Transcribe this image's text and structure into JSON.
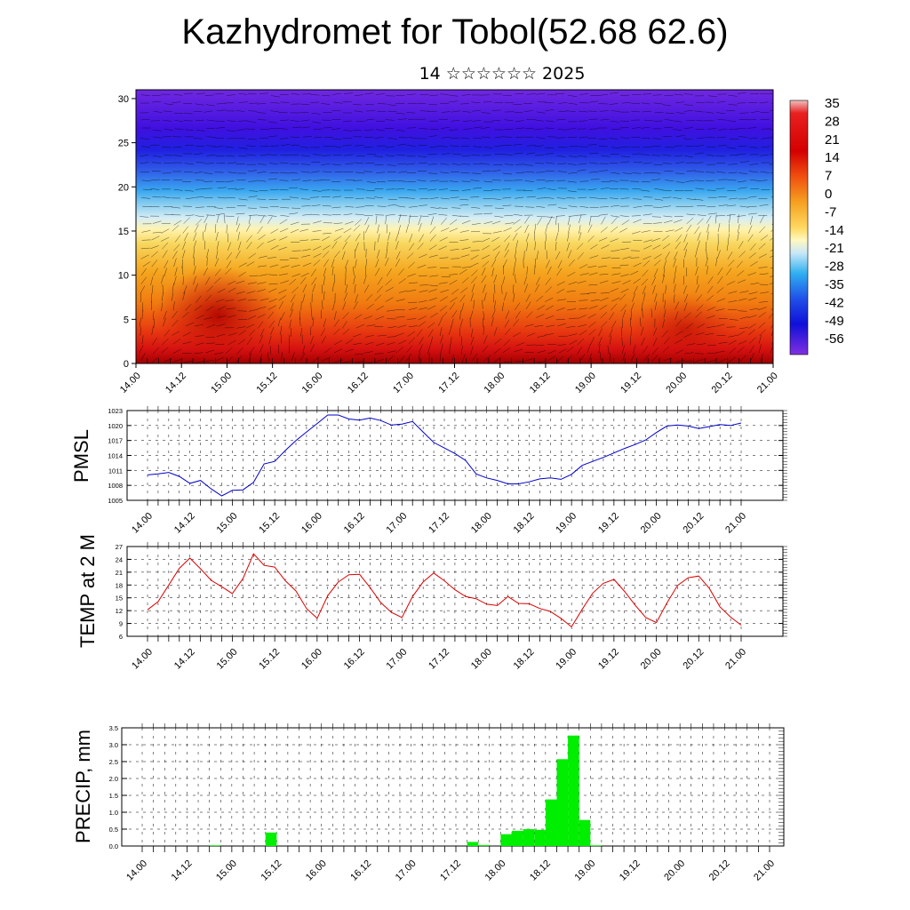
{
  "header": {
    "title": "Kazhydromet for Tobol(52.68 62.6)",
    "subtitle": "14 ☆☆☆☆☆☆ 2025"
  },
  "time_labels": [
    "14.00",
    "14.12",
    "15.00",
    "15.12",
    "16.00",
    "16.12",
    "17.00",
    "17.12",
    "18.00",
    "18.12",
    "19.00",
    "19.12",
    "20.00",
    "20.12",
    "21.00"
  ],
  "colors": {
    "pmsl_line": "#0000cc",
    "temp_line": "#dd0000",
    "precip_bar": "#00ee00",
    "contour_lines": "#000000"
  },
  "chart_data": [
    {
      "type": "heatmap",
      "title": "",
      "ylim": [
        0,
        31
      ],
      "y_ticks": [
        0,
        5,
        10,
        15,
        20,
        25,
        30
      ],
      "x_tick_labels": [
        "14.00",
        "14.12",
        "15.00",
        "15.12",
        "16.00",
        "16.12",
        "17.00",
        "17.12",
        "18.00",
        "18.12",
        "19.00",
        "19.12",
        "20.00",
        "20.12",
        "21.00"
      ],
      "colorbar": {
        "labels": [
          "35",
          "28",
          "21",
          "14",
          "7",
          "0",
          "-7",
          "-14",
          "-21",
          "-28",
          "-35",
          "-42",
          "-49",
          "-56"
        ],
        "min": -63,
        "max": 40
      },
      "overlay": "wind vectors"
    },
    {
      "type": "line",
      "ylabel": "PMSL",
      "ylim": [
        1005,
        1023
      ],
      "y_ticks": [
        1005,
        1008,
        1011,
        1014,
        1017,
        1020,
        1023
      ],
      "x_tick_labels": [
        "14.00",
        "14.12",
        "15.00",
        "15.12",
        "16.00",
        "16.12",
        "17.00",
        "17.12",
        "18.00",
        "18.12",
        "19.00",
        "19.12",
        "20.00",
        "20.12",
        "21.00"
      ],
      "x": [
        0,
        3,
        6,
        9,
        12,
        15,
        18,
        21,
        24,
        27,
        30,
        33,
        36,
        39,
        42,
        45,
        48,
        51,
        54,
        57,
        60,
        63,
        66,
        69,
        72,
        75,
        78,
        81,
        84,
        87,
        90,
        93,
        96,
        99,
        102,
        105,
        108,
        111,
        114,
        117,
        120,
        123,
        126,
        129,
        132,
        135,
        138,
        141,
        144,
        147,
        150,
        153,
        156,
        159,
        162,
        165,
        168
      ],
      "values": [
        1010.1,
        1010.3,
        1010.6,
        1009.8,
        1008.4,
        1009.0,
        1007.3,
        1005.9,
        1007.0,
        1007.1,
        1008.6,
        1012.3,
        1012.8,
        1015.0,
        1017.0,
        1018.7,
        1020.4,
        1022.1,
        1022.1,
        1021.3,
        1021.1,
        1021.5,
        1021.0,
        1020.1,
        1020.3,
        1020.8,
        1018.7,
        1016.6,
        1015.5,
        1014.4,
        1013.0,
        1010.3,
        1009.5,
        1009.0,
        1008.3,
        1008.3,
        1008.7,
        1009.3,
        1009.5,
        1009.2,
        1010.2,
        1012.0,
        1012.8,
        1013.6,
        1014.5,
        1015.4,
        1016.2,
        1017.1,
        1018.6,
        1019.9,
        1020.1,
        1019.9,
        1019.4,
        1019.8,
        1020.2,
        1020.0,
        1020.5
      ]
    },
    {
      "type": "line",
      "ylabel": "TEMP at 2 M",
      "ylim": [
        6,
        27
      ],
      "y_ticks": [
        6,
        9,
        12,
        15,
        18,
        21,
        24,
        27
      ],
      "x_tick_labels": [
        "14.00",
        "14.12",
        "15.00",
        "15.12",
        "16.00",
        "16.12",
        "17.00",
        "17.12",
        "18.00",
        "18.12",
        "19.00",
        "19.12",
        "20.00",
        "20.12",
        "21.00"
      ],
      "x": [
        0,
        3,
        6,
        9,
        12,
        15,
        18,
        21,
        24,
        27,
        30,
        33,
        36,
        39,
        42,
        45,
        48,
        51,
        54,
        57,
        60,
        63,
        66,
        69,
        72,
        75,
        78,
        81,
        84,
        87,
        90,
        93,
        96,
        99,
        102,
        105,
        108,
        111,
        114,
        117,
        120,
        123,
        126,
        129,
        132,
        135,
        138,
        141,
        144,
        147,
        150,
        153,
        156,
        159,
        162,
        165,
        168
      ],
      "values": [
        12.2,
        14.1,
        18.0,
        21.9,
        24.3,
        21.8,
        19.1,
        17.6,
        16.0,
        19.5,
        25.3,
        22.6,
        22.2,
        19.0,
        16.6,
        12.5,
        10.2,
        15.5,
        18.7,
        20.4,
        20.5,
        17.4,
        13.9,
        11.6,
        10.4,
        15.3,
        18.7,
        20.8,
        19.0,
        16.9,
        15.3,
        14.8,
        13.5,
        13.2,
        15.3,
        13.7,
        13.6,
        12.5,
        11.8,
        10.2,
        8.2,
        12.3,
        16.1,
        18.4,
        19.3,
        16.5,
        13.3,
        10.4,
        9.2,
        13.8,
        17.9,
        19.7,
        20.1,
        17.2,
        12.9,
        10.5,
        8.6
      ]
    },
    {
      "type": "bar",
      "ylabel": "PRECIP, mm",
      "ylim": [
        0,
        3.5
      ],
      "y_ticks": [
        0.0,
        0.5,
        1.0,
        1.5,
        2.0,
        2.5,
        3.0,
        3.5
      ],
      "x_tick_labels": [
        "14.00",
        "14.12",
        "15.00",
        "15.12",
        "16.00",
        "16.12",
        "17.00",
        "17.12",
        "18.00",
        "18.12",
        "19.00",
        "19.12",
        "20.00",
        "20.12",
        "21.00"
      ],
      "x": [
        18,
        33,
        87,
        90,
        96,
        99,
        102,
        105,
        108,
        111,
        114,
        117,
        120
      ],
      "values": [
        0.02,
        0.4,
        0.12,
        0.03,
        0.35,
        0.45,
        0.5,
        0.48,
        1.38,
        2.57,
        3.27,
        0.77,
        0.02
      ]
    }
  ]
}
